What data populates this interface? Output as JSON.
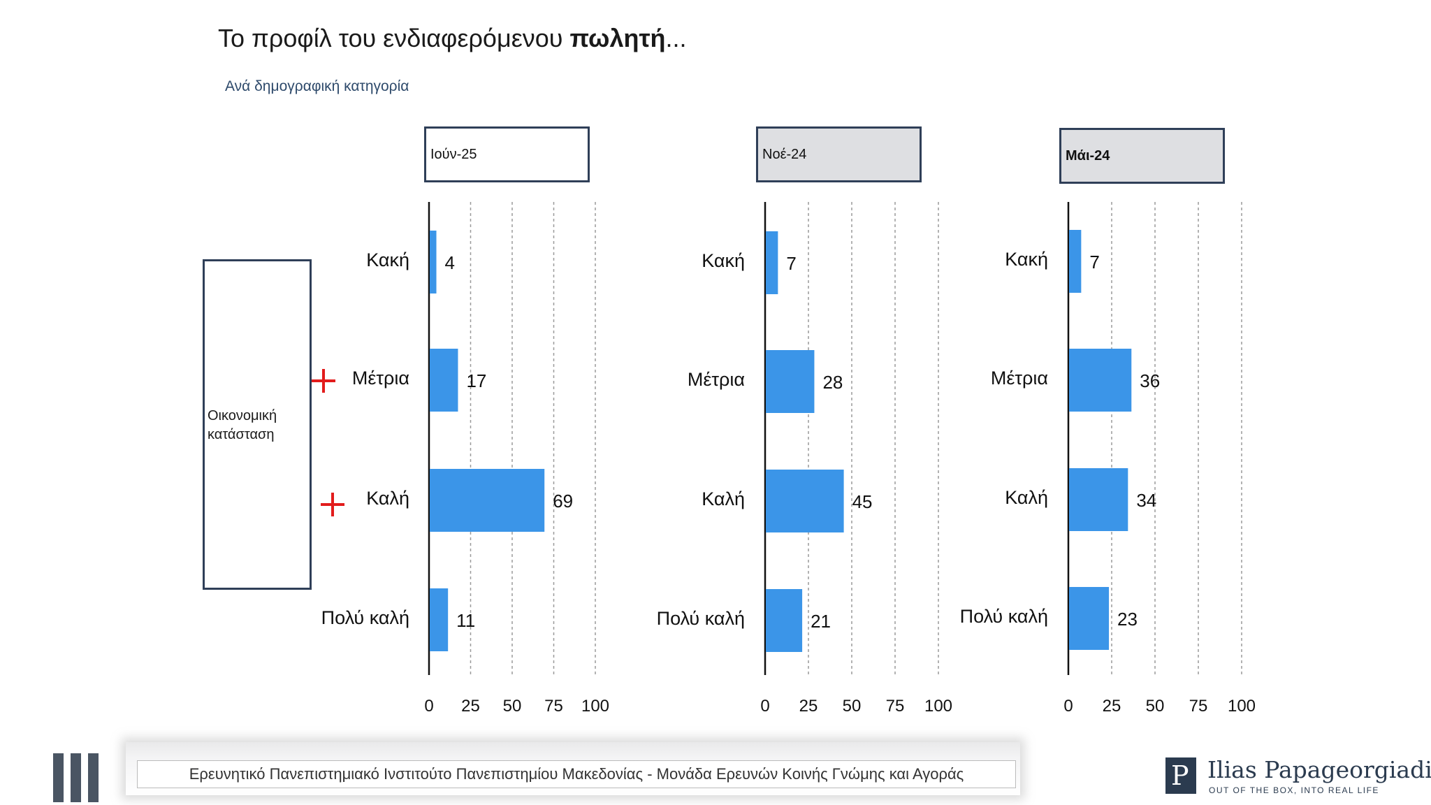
{
  "title": {
    "lead": "Το προφίλ του ενδιαφερόμενου ",
    "bold": "πωλητή",
    "tail": "..."
  },
  "subtitle": "Ανά δημογραφική κατηγορία",
  "category_label": "Οικονομική κατάσταση",
  "row_labels": [
    "Κακή",
    "Μέτρια",
    "Καλή",
    "Πολύ καλή"
  ],
  "highlight_marks": [
    {
      "row": "Μέτρια",
      "symbol": "+",
      "color": "#e21c1c"
    },
    {
      "row": "Καλή",
      "symbol": "+",
      "color": "#e21c1c"
    }
  ],
  "colors": {
    "bar": "#3b95e8",
    "axis": "#111111",
    "grid": "#9a9a9a",
    "highlight": "#e21c1c"
  },
  "chart_data": [
    {
      "type": "bar",
      "orientation": "horizontal",
      "period": "Ιούν-25",
      "header_style": "current",
      "categories": [
        "Κακή",
        "Μέτρια",
        "Καλή",
        "Πολύ καλή"
      ],
      "values": [
        4,
        17,
        69,
        11
      ],
      "xlim": [
        0,
        100
      ],
      "xticks": [
        0,
        25,
        50,
        75,
        100
      ],
      "grid": "dashed vertical"
    },
    {
      "type": "bar",
      "orientation": "horizontal",
      "period": "Νοέ-24",
      "header_style": "past",
      "categories": [
        "Κακή",
        "Μέτρια",
        "Καλή",
        "Πολύ καλή"
      ],
      "values": [
        7,
        28,
        45,
        21
      ],
      "xlim": [
        0,
        100
      ],
      "xticks": [
        0,
        25,
        50,
        75,
        100
      ],
      "grid": "dashed vertical"
    },
    {
      "type": "bar",
      "orientation": "horizontal",
      "period": "Μάι-24",
      "header_style": "past-bold",
      "categories": [
        "Κακή",
        "Μέτρια",
        "Καλή",
        "Πολύ καλή"
      ],
      "values": [
        7,
        36,
        34,
        23
      ],
      "xlim": [
        0,
        100
      ],
      "xticks": [
        0,
        25,
        50,
        75,
        100
      ],
      "grid": "dashed vertical"
    }
  ],
  "footer": {
    "institute": "Ερευνητικό Πανεπιστημιακό Ινστιτούτο Πανεπιστημίου Μακεδονίας - Μονάδα Ερευνών Κοινής Γνώμης και Αγοράς",
    "brand_name": "Ilias Papageorgiadis",
    "brand_tagline": "OUT OF THE BOX, INTO REAL LIFE",
    "brand_mark": "P"
  }
}
